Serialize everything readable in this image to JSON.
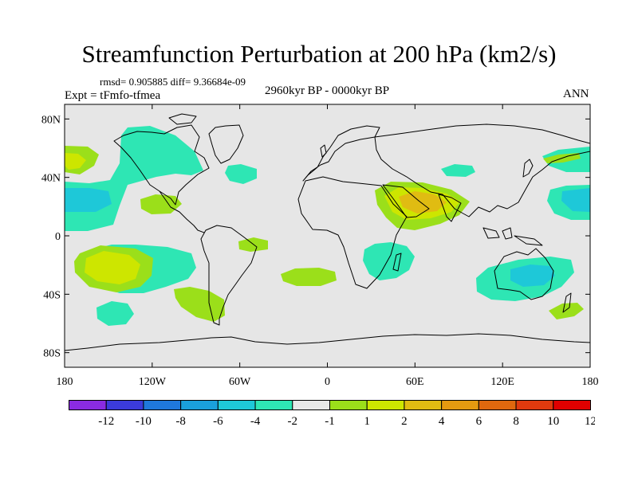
{
  "title": "Streamfunction Perturbation at 200 hPa (km2/s)",
  "stats": "rmsd= 0.905885 diff= 9.36684e-09",
  "experiment": "Expt = tFmfo-tfmea",
  "period": "2960kyr BP - 0000kyr BP",
  "season": "ANN",
  "lat_labels": [
    {
      "text": "80N",
      "lat": 80
    },
    {
      "text": "40N",
      "lat": 40
    },
    {
      "text": "0",
      "lat": 0
    },
    {
      "text": "40S",
      "lat": -40
    },
    {
      "text": "80S",
      "lat": -80
    }
  ],
  "lon_labels": [
    {
      "text": "180",
      "lon": -180
    },
    {
      "text": "120W",
      "lon": -120
    },
    {
      "text": "60W",
      "lon": -60
    },
    {
      "text": "0",
      "lon": 0
    },
    {
      "text": "60E",
      "lon": 60
    },
    {
      "text": "120E",
      "lon": 120
    },
    {
      "text": "180",
      "lon": 180
    }
  ],
  "colorbar": {
    "colors": [
      "#8a2be2",
      "#3b3bdb",
      "#1f78dc",
      "#1aa0dc",
      "#1ec8d8",
      "#2ee6b4",
      "#e8e8e8",
      "#9bdf1a",
      "#cde600",
      "#e0bc12",
      "#e59a10",
      "#e0680e",
      "#e03a0e",
      "#e00000"
    ],
    "labels": [
      "-12",
      "-10",
      "-8",
      "-6",
      "-4",
      "-2",
      "-1",
      "1",
      "2",
      "4",
      "6",
      "8",
      "10",
      "12"
    ]
  },
  "map_colors": {
    "background": "#e6e6e6",
    "pos_light": "#9bdf1a",
    "pos_mid": "#cde600",
    "pos_strong": "#e0bc12",
    "neg_light": "#2ee6b4",
    "neg_mid": "#1ec8d8"
  }
}
